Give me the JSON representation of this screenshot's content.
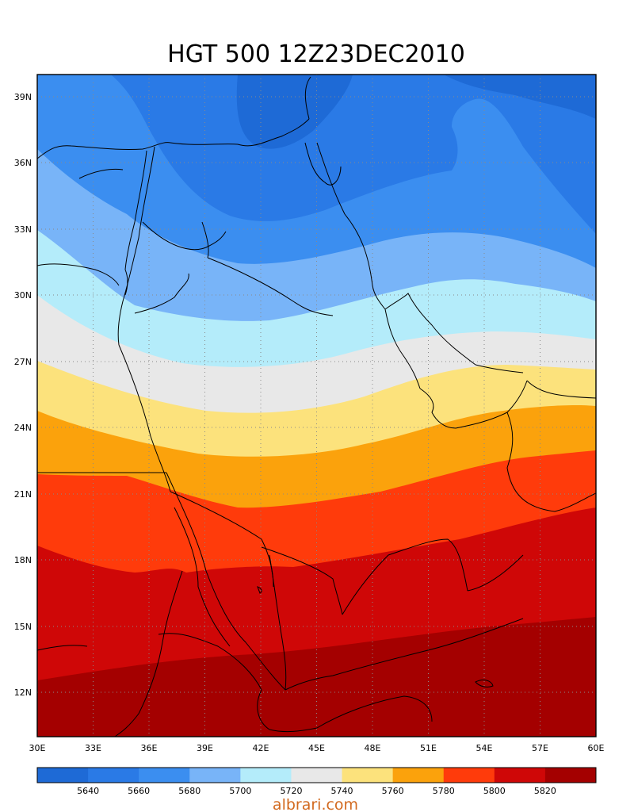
{
  "title": "HGT 500 12Z23DEC2010",
  "watermark": "albrari.com",
  "map": {
    "lon_range": [
      30,
      60
    ],
    "lat_range": [
      10,
      40
    ],
    "lon_ticks": [
      "30E",
      "33E",
      "36E",
      "39E",
      "42E",
      "45E",
      "48E",
      "51E",
      "54E",
      "57E",
      "60E"
    ],
    "lat_ticks": [
      "39N",
      "36N",
      "33N",
      "30N",
      "27N",
      "24N",
      "21N",
      "18N",
      "15N",
      "12N"
    ],
    "grid": true
  },
  "colorbar": {
    "colors": [
      "#1e6ad6",
      "#2a7ae6",
      "#3b8ef0",
      "#78b4f8",
      "#b4ecfa",
      "#e8e8e8",
      "#fce27c",
      "#fba20c",
      "#ff3b0b",
      "#cf0707",
      "#a40000"
    ],
    "labels": [
      "5640",
      "5660",
      "5680",
      "5700",
      "5720",
      "5740",
      "5760",
      "5780",
      "5800",
      "5820"
    ]
  }
}
